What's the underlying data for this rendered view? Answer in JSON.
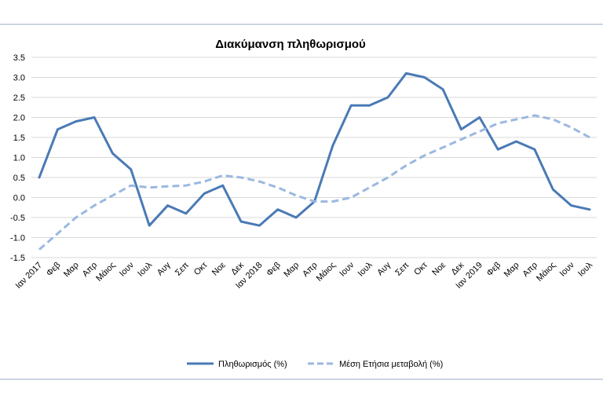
{
  "chart_data": {
    "type": "line",
    "title": "Διακύμανση  πληθωρισμού",
    "xlabel": "",
    "ylabel": "",
    "ylim": [
      -1.5,
      3.5
    ],
    "ytick_step": 0.5,
    "yticks": [
      "3.5",
      "3.0",
      "2.5",
      "2.0",
      "1.5",
      "1.0",
      "0.5",
      "0.0",
      "-0.5",
      "-1.0",
      "-1.5"
    ],
    "grid": true,
    "legend_position": "bottom",
    "categories": [
      "Ιαν 2017",
      "Φεβ",
      "Μαρ",
      "Απρ",
      "Μάιος",
      "Ιουν",
      "Ιουλ",
      "Αυγ",
      "Σεπ",
      "Οκτ",
      "Νοε",
      "Δεκ",
      "Ιαν 2018",
      "Φεβ",
      "Μαρ",
      "Απρ",
      "Μάιος",
      "Ιουν",
      "Ιουλ",
      "Αυγ",
      "Σεπ",
      "Οκτ",
      "Νοε",
      "Δεκ",
      "Ιαν 2019",
      "Φεβ",
      "Μαρ",
      "Απρ",
      "Μάιος",
      "Ιουν",
      "Ιουλ"
    ],
    "series": [
      {
        "name": "Πληθωρισμός (%)",
        "style": "solid",
        "color": "#4a7ab5",
        "values": [
          0.5,
          1.7,
          1.9,
          2.0,
          1.1,
          0.7,
          -0.7,
          -0.2,
          -0.4,
          0.1,
          0.3,
          -0.6,
          -0.7,
          -0.3,
          -0.5,
          -0.1,
          1.3,
          2.3,
          2.3,
          2.5,
          3.1,
          3.0,
          2.7,
          1.7,
          2.0,
          1.2,
          1.4,
          1.2,
          0.2,
          -0.2,
          -0.3
        ]
      },
      {
        "name": "Μέση Ετήσια μεταβολή (%)",
        "style": "dashed",
        "color": "#9bb8e0",
        "values": [
          -1.3,
          -0.9,
          -0.5,
          -0.2,
          0.05,
          0.3,
          0.25,
          0.28,
          0.3,
          0.4,
          0.55,
          0.5,
          0.4,
          0.25,
          0.05,
          -0.1,
          -0.1,
          0.0,
          0.25,
          0.5,
          0.8,
          1.05,
          1.25,
          1.45,
          1.65,
          1.85,
          1.95,
          2.05,
          1.95,
          1.75,
          1.5
        ]
      }
    ]
  }
}
